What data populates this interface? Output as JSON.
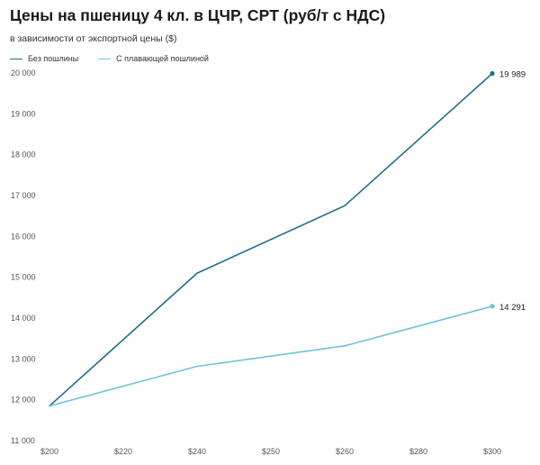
{
  "chart_data": {
    "type": "line",
    "title": "Цены на пшеницу 4 кл. в ЦЧР, CPT (руб/т с НДС)",
    "subtitle": "в зависимости от экспортной цены ($)",
    "xlabel": "",
    "ylabel": "",
    "x": [
      "$200",
      "$220",
      "$240",
      "$250",
      "$260",
      "$280",
      "$300"
    ],
    "x_tick_labels": [
      "$200",
      "$220",
      "$240",
      "$250",
      "$260",
      "$280",
      "$300"
    ],
    "ylim": [
      11000,
      20000
    ],
    "y_ticks": [
      11000,
      12000,
      13000,
      14000,
      15000,
      16000,
      17000,
      18000,
      19000,
      20000
    ],
    "y_tick_labels": [
      "11 000",
      "12 000",
      "13 000",
      "14 000",
      "15 000",
      "16 000",
      "17 000",
      "18 000",
      "19 000",
      "20 000"
    ],
    "grid": false,
    "legend": "top-left",
    "series": [
      {
        "name": "Без пошлины",
        "color": "#1f6f8b",
        "points": [
          {
            "x": "$200",
            "y": 11850
          },
          {
            "x": "$240",
            "y": 15100
          },
          {
            "x": "$260",
            "y": 16750
          },
          {
            "x": "$300",
            "y": 19989
          }
        ],
        "end_label": "19 989"
      },
      {
        "name": "С плавающей пошлиной",
        "color": "#6ec3dd",
        "points": [
          {
            "x": "$200",
            "y": 11850
          },
          {
            "x": "$240",
            "y": 12820
          },
          {
            "x": "$260",
            "y": 13320
          },
          {
            "x": "$300",
            "y": 14291
          }
        ],
        "end_label": "14 291"
      }
    ]
  }
}
